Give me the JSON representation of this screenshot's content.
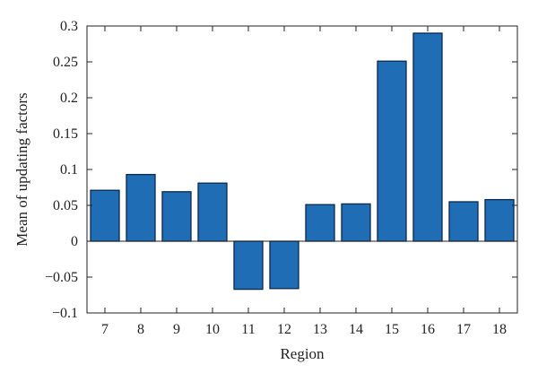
{
  "chart_data": {
    "type": "bar",
    "categories": [
      "7",
      "8",
      "9",
      "10",
      "11",
      "12",
      "13",
      "14",
      "15",
      "16",
      "17",
      "18"
    ],
    "values": [
      0.071,
      0.093,
      0.069,
      0.081,
      -0.067,
      -0.066,
      0.051,
      0.052,
      0.251,
      0.29,
      0.055,
      0.058
    ],
    "xlabel": "Region",
    "ylabel": "Mean of updating factors",
    "ylim": [
      -0.1,
      0.3
    ],
    "yticks": [
      -0.1,
      -0.05,
      0,
      0.05,
      0.1,
      0.15,
      0.2,
      0.25,
      0.3
    ],
    "ytick_labels": [
      "−0.1",
      "−0.05",
      "0",
      "0.05",
      "0.1",
      "0.15",
      "0.2",
      "0.25",
      "0.3"
    ],
    "bar_color": "#1f6db4",
    "bar_edge_color": "#0b2a4a",
    "grid": false,
    "legend": "none"
  }
}
